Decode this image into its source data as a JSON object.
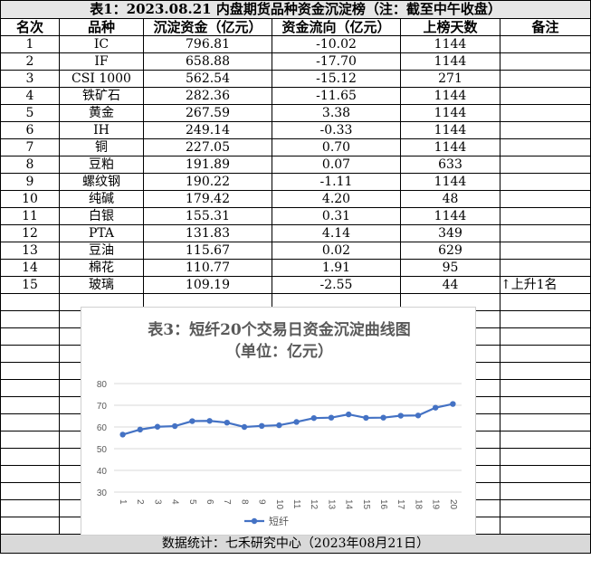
{
  "table": {
    "title": "表1：2023.08.21 内盘期货品种资金沉淀榜（注：截至中午收盘）",
    "headers": [
      "名次",
      "品种",
      "沉淀资金（亿元）",
      "资金流向（亿元）",
      "上榜天数",
      "备注"
    ],
    "rows": [
      [
        "1",
        "IC",
        "796.81",
        "-10.02",
        "1144",
        ""
      ],
      [
        "2",
        "IF",
        "658.88",
        "-17.70",
        "1144",
        ""
      ],
      [
        "3",
        "CSI 1000",
        "562.54",
        "-15.12",
        "271",
        ""
      ],
      [
        "4",
        "铁矿石",
        "282.36",
        "-11.65",
        "1144",
        ""
      ],
      [
        "5",
        "黄金",
        "267.59",
        "3.38",
        "1144",
        ""
      ],
      [
        "6",
        "IH",
        "249.14",
        "-0.33",
        "1144",
        ""
      ],
      [
        "7",
        "铜",
        "227.05",
        "0.70",
        "1144",
        ""
      ],
      [
        "8",
        "豆粕",
        "191.89",
        "0.07",
        "633",
        ""
      ],
      [
        "9",
        "螺纹钢",
        "190.22",
        "-1.11",
        "1144",
        ""
      ],
      [
        "10",
        "纯碱",
        "179.42",
        "4.20",
        "48",
        ""
      ],
      [
        "11",
        "白银",
        "155.31",
        "0.31",
        "1144",
        ""
      ],
      [
        "12",
        "PTA",
        "131.83",
        "4.14",
        "349",
        ""
      ],
      [
        "13",
        "豆油",
        "115.67",
        "0.02",
        "629",
        ""
      ],
      [
        "14",
        "棉花",
        "110.77",
        "1.91",
        "95",
        ""
      ],
      [
        "15",
        "玻璃",
        "109.19",
        "-2.55",
        "44",
        "↑上升1名"
      ]
    ],
    "footer": "数据统计：七禾研究中心（2023年08月21日）"
  },
  "chart_data": {
    "type": "line",
    "title": "表3：短纤20个交易日资金沉淀曲线图",
    "subtitle": "（单位：亿元）",
    "x": [
      "1",
      "2",
      "3",
      "4",
      "5",
      "6",
      "7",
      "8",
      "9",
      "10",
      "11",
      "12",
      "13",
      "14",
      "15",
      "16",
      "17",
      "18",
      "19",
      "20"
    ],
    "series": [
      {
        "name": "短纤",
        "values": [
          56.5,
          58.8,
          60.1,
          60.4,
          62.7,
          62.8,
          62.0,
          60.0,
          60.5,
          60.8,
          62.3,
          64.1,
          64.3,
          65.8,
          64.2,
          64.3,
          65.2,
          65.3,
          68.9,
          70.6
        ]
      }
    ],
    "yticks": [
      30,
      40,
      50,
      60,
      70,
      80
    ],
    "ylim": [
      30,
      80
    ],
    "grid": true,
    "legend": "bottom",
    "line_color": "#4472c4"
  }
}
